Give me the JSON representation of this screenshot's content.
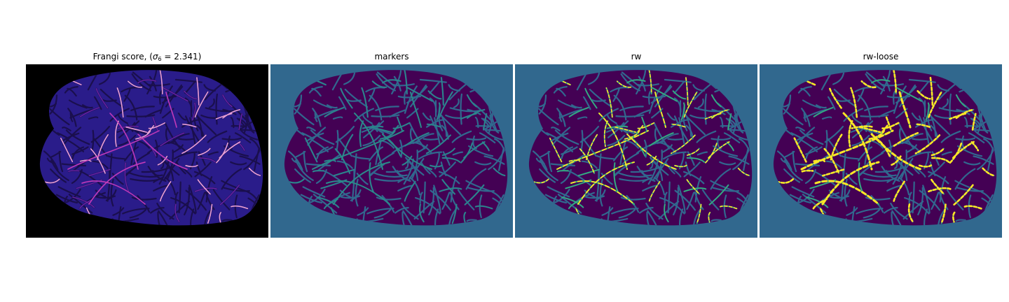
{
  "figure": {
    "panels": [
      {
        "id": "frangi",
        "title_prefix": "Frangi score, (",
        "title_symbol": "σ",
        "title_subscript": "6",
        "title_suffix": " = 2.341)",
        "background_color": "#000000",
        "tissue_color": "#2a1c8a",
        "vessel_colors": [
          "#1a0f4d",
          "#6c22a8",
          "#c83fb5",
          "#e8a0d8"
        ],
        "colormap": "plasma-like"
      },
      {
        "id": "markers",
        "title": "markers",
        "background_color": "#31688e",
        "tissue_color": "#440154",
        "vessel_colors": [
          "#31688e",
          "#2a8b8a",
          "#35b779"
        ],
        "colormap": "viridis"
      },
      {
        "id": "rw",
        "title": "rw",
        "background_color": "#31688e",
        "tissue_color": "#440154",
        "vessel_colors": [
          "#31688e",
          "#35b779",
          "#fde725"
        ],
        "colormap": "viridis"
      },
      {
        "id": "rw-loose",
        "title": "rw-loose",
        "background_color": "#31688e",
        "tissue_color": "#440154",
        "vessel_colors": [
          "#31688e",
          "#35b779",
          "#fde725"
        ],
        "colormap": "viridis"
      }
    ]
  }
}
